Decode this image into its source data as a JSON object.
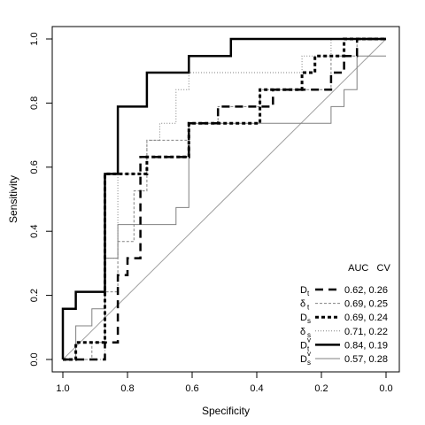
{
  "chart_data": {
    "type": "line",
    "title": "",
    "xlabel": "Specificity",
    "ylabel": "Sensitivity",
    "xlim": [
      1.0,
      0.0
    ],
    "ylim": [
      0.0,
      1.0
    ],
    "x_reversed": true,
    "grid": false,
    "xticks": [
      "1.0",
      "0.8",
      "0.6",
      "0.4",
      "0.2",
      "0.0"
    ],
    "yticks": [
      "0.0",
      "0.2",
      "0.4",
      "0.6",
      "0.8",
      "1.0"
    ],
    "reference_line": {
      "from": [
        1.0,
        0.0
      ],
      "to": [
        0.0,
        1.0
      ],
      "color": "#a0a0a0"
    },
    "legend": {
      "position": "bottom-right",
      "header": "AUC   CV",
      "entries": [
        {
          "label": "D",
          "sub": "t",
          "sup": "",
          "value": "0.62, 0.26"
        },
        {
          "label": "δ",
          "sub": "t",
          "sup": "",
          "value": "0.69, 0.25"
        },
        {
          "label": "D",
          "sub": "s",
          "sup": "",
          "value": "0.69, 0.24"
        },
        {
          "label": "δ",
          "sub": "s",
          "sup": "",
          "value": "0.71, 0.22"
        },
        {
          "label": "D",
          "sub": "t",
          "sup": "v",
          "value": "0.84, 0.19"
        },
        {
          "label": "D",
          "sub": "s",
          "sup": "v",
          "value": "0.57, 0.28"
        }
      ]
    },
    "series": [
      {
        "key": "Dt",
        "style": "dashed-thick",
        "color": "#000000",
        "specificity": [
          1.0,
          0.87,
          0.87,
          0.83,
          0.83,
          0.8,
          0.8,
          0.76,
          0.76,
          0.7,
          0.7,
          0.61,
          0.61,
          0.52,
          0.52,
          0.39,
          0.39,
          0.35,
          0.35,
          0.3,
          0.3,
          0.17,
          0.17,
          0.13,
          0.13,
          0.09,
          0.09,
          0.0
        ],
        "sensitivity": [
          0.0,
          0.0,
          0.053,
          0.053,
          0.263,
          0.263,
          0.316,
          0.316,
          0.632,
          0.632,
          0.632,
          0.632,
          0.737,
          0.737,
          0.789,
          0.789,
          0.789,
          0.789,
          0.842,
          0.842,
          0.842,
          0.842,
          0.895,
          0.895,
          0.947,
          0.947,
          1.0,
          1.0
        ]
      },
      {
        "key": "δt",
        "style": "dashed-thin",
        "color": "#808080",
        "specificity": [
          1.0,
          0.91,
          0.91,
          0.87,
          0.87,
          0.83,
          0.83,
          0.78,
          0.78,
          0.74,
          0.74,
          0.61,
          0.61,
          0.52,
          0.52,
          0.39,
          0.39,
          0.3,
          0.3,
          0.26,
          0.26,
          0.17,
          0.17,
          0.09,
          0.09,
          0.0
        ],
        "sensitivity": [
          0.0,
          0.0,
          0.053,
          0.053,
          0.211,
          0.211,
          0.368,
          0.368,
          0.526,
          0.526,
          0.684,
          0.684,
          0.737,
          0.737,
          0.789,
          0.789,
          0.842,
          0.842,
          0.842,
          0.842,
          0.842,
          0.842,
          0.947,
          0.947,
          1.0,
          1.0
        ]
      },
      {
        "key": "Ds",
        "style": "dotted-thick",
        "color": "#000000",
        "specificity": [
          1.0,
          0.96,
          0.96,
          0.87,
          0.87,
          0.83,
          0.83,
          0.74,
          0.74,
          0.61,
          0.61,
          0.39,
          0.39,
          0.26,
          0.26,
          0.22,
          0.22,
          0.13,
          0.13,
          0.0
        ],
        "sensitivity": [
          0.0,
          0.0,
          0.053,
          0.053,
          0.579,
          0.579,
          0.579,
          0.579,
          0.632,
          0.632,
          0.737,
          0.737,
          0.842,
          0.842,
          0.895,
          0.895,
          0.947,
          0.947,
          1.0,
          1.0
        ]
      },
      {
        "key": "δs",
        "style": "dotted-thin",
        "color": "#808080",
        "specificity": [
          1.0,
          0.87,
          0.87,
          0.83,
          0.83,
          0.74,
          0.74,
          0.7,
          0.7,
          0.65,
          0.65,
          0.61,
          0.61,
          0.39,
          0.39,
          0.26,
          0.26,
          0.17,
          0.17,
          0.0
        ],
        "sensitivity": [
          0.0,
          0.0,
          0.316,
          0.316,
          0.579,
          0.579,
          0.684,
          0.684,
          0.737,
          0.737,
          0.842,
          0.842,
          0.895,
          0.895,
          0.895,
          0.895,
          0.947,
          0.947,
          1.0,
          1.0
        ]
      },
      {
        "key": "Dtv",
        "style": "solid-thick",
        "color": "#000000",
        "specificity": [
          1.0,
          1.0,
          0.96,
          0.96,
          0.87,
          0.87,
          0.83,
          0.83,
          0.74,
          0.74,
          0.61,
          0.61,
          0.48,
          0.48,
          0.0
        ],
        "sensitivity": [
          0.0,
          0.158,
          0.158,
          0.211,
          0.211,
          0.579,
          0.579,
          0.789,
          0.789,
          0.895,
          0.895,
          0.947,
          0.947,
          1.0,
          1.0
        ]
      },
      {
        "key": "Dsv",
        "style": "solid-thin",
        "color": "#808080",
        "specificity": [
          1.0,
          0.96,
          0.96,
          0.91,
          0.91,
          0.87,
          0.87,
          0.83,
          0.83,
          0.74,
          0.74,
          0.65,
          0.65,
          0.61,
          0.61,
          0.17,
          0.17,
          0.13,
          0.13,
          0.09,
          0.09,
          0.0
        ],
        "sensitivity": [
          0.0,
          0.0,
          0.105,
          0.105,
          0.158,
          0.158,
          0.316,
          0.316,
          0.421,
          0.421,
          0.421,
          0.421,
          0.474,
          0.474,
          0.737,
          0.737,
          0.789,
          0.789,
          0.842,
          0.842,
          0.947,
          0.947
        ]
      }
    ]
  }
}
